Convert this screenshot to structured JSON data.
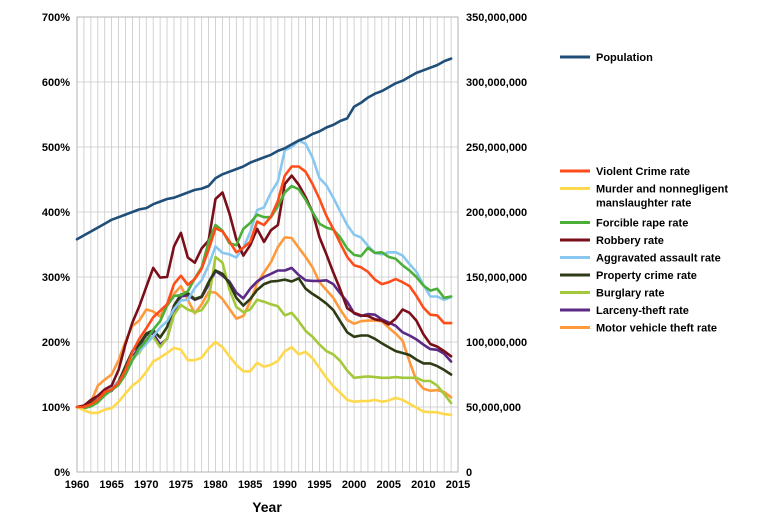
{
  "chart_data": {
    "type": "line",
    "title": "",
    "xlabel": "Year",
    "ylabel_left": "",
    "ylabel_right": "",
    "xlim": [
      1960,
      2015
    ],
    "ylim_left": [
      0,
      700
    ],
    "ylim_right": [
      0,
      350000000
    ],
    "grid": true,
    "legend": "right",
    "x_ticks": [
      1960,
      1965,
      1970,
      1975,
      1980,
      1985,
      1990,
      1995,
      2000,
      2005,
      2010,
      2015
    ],
    "x_tick_labels": [
      "1960",
      "1965",
      "1970",
      "1975",
      "1980",
      "1985",
      "1990",
      "1995",
      "2000",
      "2005",
      "2010",
      "2015"
    ],
    "y_left_ticks": [
      0,
      100,
      200,
      300,
      400,
      500,
      600,
      700
    ],
    "y_left_tick_labels": [
      "0%",
      "100%",
      "200%",
      "300%",
      "400%",
      "500%",
      "600%",
      "700%"
    ],
    "y_right_ticks": [
      0,
      50000000,
      100000000,
      150000000,
      200000000,
      250000000,
      300000000,
      350000000
    ],
    "y_right_tick_labels": [
      "0",
      "50,000,000",
      "100,000,000",
      "150,000,000",
      "200,000,000",
      "250,000,000",
      "300,000,000",
      "350,000,000"
    ],
    "x": [
      1960,
      1961,
      1962,
      1963,
      1964,
      1965,
      1966,
      1967,
      1968,
      1969,
      1970,
      1971,
      1972,
      1973,
      1974,
      1975,
      1976,
      1977,
      1978,
      1979,
      1980,
      1981,
      1982,
      1983,
      1984,
      1985,
      1986,
      1987,
      1988,
      1989,
      1990,
      1991,
      1992,
      1993,
      1994,
      1995,
      1996,
      1997,
      1998,
      1999,
      2000,
      2001,
      2002,
      2003,
      2004,
      2005,
      2006,
      2007,
      2008,
      2009,
      2010,
      2011,
      2012,
      2013,
      2014
    ],
    "population": {
      "name": "Population",
      "color": "#1f4e79",
      "axis": "right",
      "values": [
        179000000,
        182000000,
        185000000,
        188000000,
        191000000,
        194000000,
        196000000,
        198000000,
        200000000,
        202000000,
        203000000,
        206000000,
        208000000,
        210000000,
        211000000,
        213000000,
        215000000,
        217000000,
        218000000,
        220000000,
        226000000,
        229000000,
        231000000,
        233000000,
        235000000,
        238000000,
        240000000,
        242000000,
        244000000,
        247000000,
        249000000,
        252000000,
        255000000,
        257000000,
        260000000,
        262000000,
        265000000,
        267000000,
        270000000,
        272000000,
        281000000,
        284000000,
        288000000,
        291000000,
        293000000,
        296000000,
        299000000,
        301000000,
        304000000,
        307000000,
        309000000,
        311000000,
        313000000,
        316000000,
        318000000
      ]
    },
    "series": [
      {
        "name": "Violent Crime rate",
        "color": "#ff4d1a",
        "axis": "left",
        "values": [
          100,
          100,
          104,
          111,
          123,
          127,
          137,
          157,
          185,
          205,
          221,
          238,
          248,
          258,
          289,
          302,
          288,
          297,
          313,
          342,
          375,
          370,
          355,
          338,
          345,
          354,
          385,
          380,
          393,
          417,
          456,
          470,
          470,
          462,
          443,
          420,
          394,
          374,
          352,
          331,
          318,
          315,
          308,
          296,
          289,
          292,
          297,
          292,
          286,
          271,
          253,
          242,
          241,
          229,
          229
        ]
      },
      {
        "name": "Murder and nonnegligent manslaughter rate",
        "color": "#ffd94d",
        "axis": "left",
        "values": [
          100,
          95,
          91,
          91,
          96,
          98,
          108,
          121,
          133,
          141,
          154,
          170,
          176,
          183,
          191,
          188,
          172,
          172,
          176,
          190,
          200,
          192,
          178,
          165,
          155,
          155,
          168,
          162,
          165,
          171,
          186,
          192,
          181,
          185,
          175,
          160,
          145,
          132,
          122,
          111,
          108,
          109,
          109,
          111,
          108,
          110,
          114,
          111,
          105,
          99,
          93,
          92,
          92,
          89,
          88
        ]
      },
      {
        "name": "Forcible rape rate",
        "color": "#4caf3a",
        "axis": "left",
        "values": [
          100,
          98,
          101,
          107,
          118,
          126,
          134,
          150,
          172,
          190,
          202,
          219,
          232,
          256,
          271,
          272,
          278,
          298,
          315,
          354,
          380,
          371,
          352,
          349,
          374,
          383,
          396,
          392,
          392,
          409,
          430,
          440,
          435,
          419,
          400,
          382,
          376,
          373,
          361,
          344,
          334,
          332,
          345,
          337,
          338,
          331,
          328,
          318,
          310,
          300,
          287,
          279,
          282,
          268,
          270
        ]
      },
      {
        "name": "Robbery rate",
        "color": "#7a0f1a",
        "axis": "left",
        "values": [
          100,
          102,
          111,
          117,
          127,
          133,
          157,
          197,
          230,
          255,
          285,
          314,
          299,
          300,
          347,
          368,
          330,
          322,
          344,
          356,
          420,
          430,
          398,
          358,
          333,
          349,
          374,
          354,
          372,
          380,
          443,
          456,
          442,
          423,
          400,
          361,
          335,
          307,
          281,
          252,
          245,
          241,
          240,
          235,
          233,
          227,
          236,
          250,
          245,
          233,
          212,
          197,
          193,
          186,
          178
        ]
      },
      {
        "name": "Aggravated assault rate",
        "color": "#88c8f0",
        "axis": "left",
        "values": [
          100,
          100,
          103,
          112,
          126,
          130,
          138,
          153,
          172,
          186,
          197,
          209,
          222,
          232,
          251,
          264,
          265,
          283,
          295,
          318,
          347,
          337,
          335,
          330,
          345,
          369,
          403,
          407,
          430,
          447,
          495,
          500,
          510,
          505,
          484,
          452,
          441,
          422,
          401,
          380,
          365,
          361,
          348,
          337,
          335,
          338,
          338,
          333,
          320,
          308,
          288,
          270,
          270,
          265,
          269
        ]
      },
      {
        "name": "Property crime rate",
        "color": "#2e3b14",
        "axis": "left",
        "values": [
          100,
          102,
          106,
          113,
          124,
          129,
          139,
          163,
          186,
          197,
          213,
          218,
          207,
          223,
          256,
          273,
          275,
          266,
          270,
          292,
          310,
          305,
          290,
          268,
          256,
          266,
          280,
          289,
          293,
          294,
          296,
          293,
          298,
          282,
          274,
          267,
          259,
          249,
          232,
          215,
          208,
          210,
          210,
          205,
          198,
          192,
          186,
          183,
          180,
          173,
          167,
          167,
          163,
          157,
          150
        ]
      },
      {
        "name": "Burglary rate",
        "color": "#a3c93a",
        "axis": "left",
        "values": [
          100,
          101,
          105,
          112,
          123,
          127,
          136,
          156,
          176,
          183,
          204,
          208,
          192,
          206,
          242,
          257,
          250,
          246,
          249,
          265,
          331,
          322,
          281,
          254,
          246,
          250,
          265,
          262,
          258,
          255,
          241,
          245,
          232,
          217,
          208,
          196,
          186,
          181,
          171,
          156,
          145,
          146,
          147,
          146,
          145,
          145,
          146,
          145,
          145,
          145,
          140,
          140,
          133,
          120,
          106
        ]
      },
      {
        "name": "Larceny-theft rate",
        "color": "#5b2a86",
        "axis": "left",
        "values": [
          100,
          100,
          104,
          113,
          121,
          125,
          138,
          156,
          176,
          193,
          211,
          213,
          196,
          205,
          244,
          270,
          272,
          265,
          269,
          288,
          309,
          302,
          293,
          276,
          267,
          282,
          293,
          300,
          305,
          310,
          310,
          314,
          303,
          295,
          294,
          294,
          295,
          289,
          275,
          262,
          244,
          240,
          243,
          242,
          235,
          230,
          225,
          215,
          210,
          204,
          196,
          189,
          188,
          182,
          170
        ]
      },
      {
        "name": "Motor vehicle theft rate",
        "color": "#ff9a3c",
        "axis": "left",
        "values": [
          100,
          101,
          107,
          133,
          142,
          150,
          172,
          201,
          225,
          233,
          250,
          247,
          239,
          259,
          274,
          286,
          265,
          244,
          258,
          277,
          276,
          266,
          251,
          236,
          240,
          262,
          290,
          307,
          323,
          346,
          361,
          360,
          345,
          331,
          315,
          292,
          280,
          268,
          250,
          234,
          228,
          232,
          233,
          233,
          232,
          222,
          213,
          202,
          170,
          141,
          128,
          125,
          126,
          123,
          115
        ]
      }
    ]
  }
}
